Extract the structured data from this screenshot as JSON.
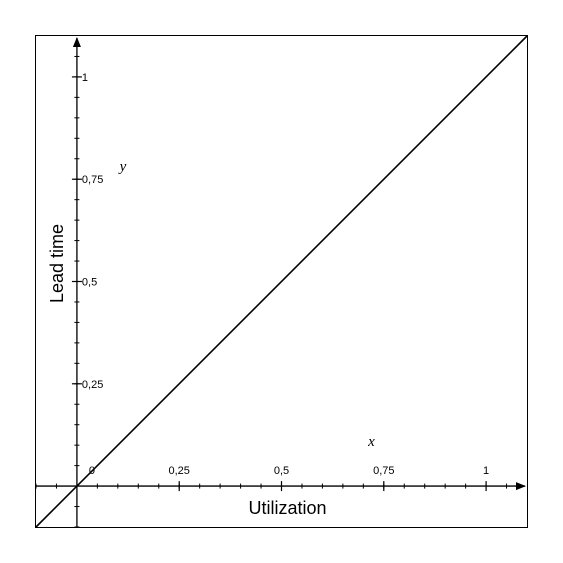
{
  "chart_data": {
    "type": "line",
    "xlabel": "Utilization",
    "ylabel": "Lead time",
    "x_axis_name": "x",
    "y_axis_name": "y",
    "origin_label": "0",
    "xlim": [
      -0.1,
      1.1
    ],
    "ylim": [
      -0.1,
      1.1
    ],
    "x_ticks": [
      {
        "value": 0.25,
        "label": "0,25"
      },
      {
        "value": 0.5,
        "label": "0,5"
      },
      {
        "value": 0.75,
        "label": "0,75"
      },
      {
        "value": 1,
        "label": "1"
      }
    ],
    "y_ticks": [
      {
        "value": 0.25,
        "label": "0,25"
      },
      {
        "value": 0.5,
        "label": "0,5"
      },
      {
        "value": 0.75,
        "label": "0,75"
      },
      {
        "value": 1,
        "label": "1"
      }
    ],
    "minor_tick_step": 0.05,
    "grid": false,
    "series": [
      {
        "x": [
          -0.1,
          1.1
        ],
        "y": [
          -0.1,
          1.1
        ]
      }
    ],
    "line_color": "#000000"
  }
}
